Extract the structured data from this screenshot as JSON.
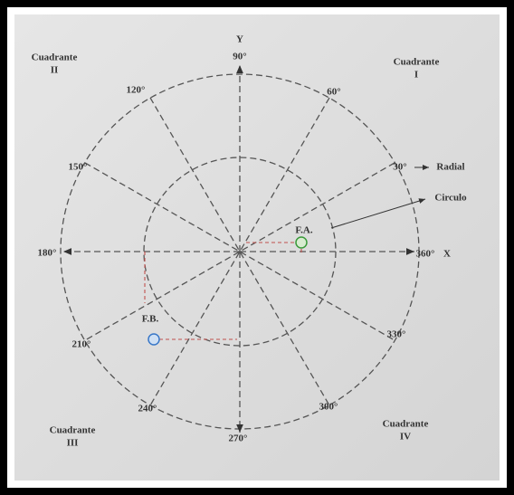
{
  "axes": {
    "y": "Y",
    "x": "X"
  },
  "quadrants": [
    {
      "name": "Cuadrante",
      "number": "I"
    },
    {
      "name": "Cuadrante",
      "number": "II"
    },
    {
      "name": "Cuadrante",
      "number": "III"
    },
    {
      "name": "Cuadrante",
      "number": "IV"
    }
  ],
  "angles": [
    "90°",
    "120°",
    "60°",
    "150°",
    "30°",
    "180°",
    "360°",
    "210°",
    "330°",
    "240°",
    "300°",
    "270°"
  ],
  "labels": {
    "radial": "Radial",
    "circle": "Circulo"
  },
  "points": [
    {
      "label": "F.A."
    },
    {
      "label": "F.B."
    }
  ]
}
